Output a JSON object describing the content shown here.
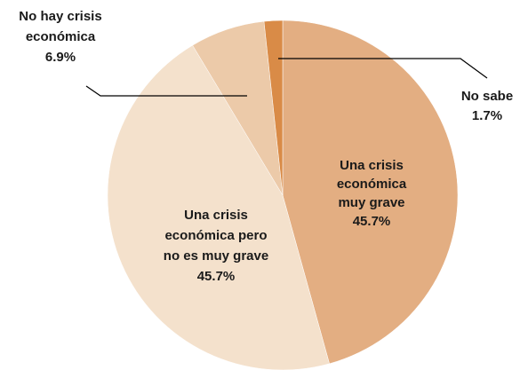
{
  "chart_data": {
    "type": "pie",
    "labels": [
      [
        "Una crisis",
        "económica",
        "muy grave"
      ],
      [
        "Una crisis",
        "económica pero",
        "no es muy grave"
      ],
      [
        "No hay crisis",
        "económica"
      ],
      [
        "No sabe"
      ]
    ],
    "values": [
      45.7,
      45.7,
      6.9,
      1.7
    ],
    "value_labels": [
      "45.7%",
      "45.7%",
      "6.9%",
      "1.7%"
    ],
    "colors": [
      "#e3ae82",
      "#f4e1cc",
      "#eccaa9",
      "#d98b47"
    ]
  }
}
